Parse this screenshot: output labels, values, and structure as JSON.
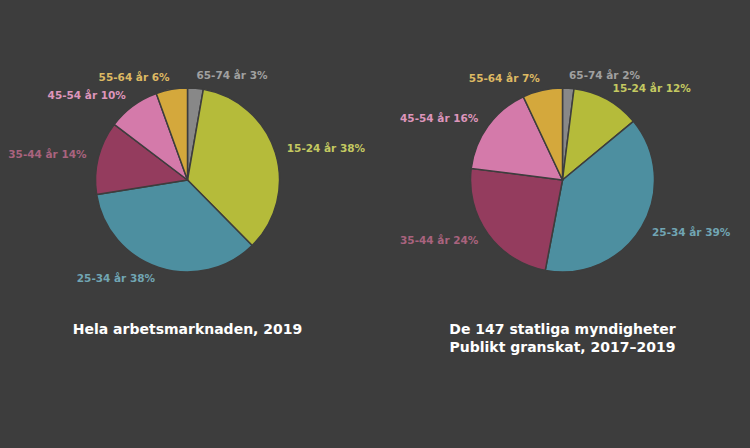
{
  "chart_data": [
    {
      "type": "pie",
      "title": "Hela arbetsmarknaden, 2019",
      "categories": [
        "65-74 år 3%",
        "15-24 år 38%",
        "25-34 år 38%",
        "35-44 år 14%",
        "45-54 år 10%",
        "55-64 år 6%"
      ],
      "values": [
        3,
        38,
        38,
        14,
        10,
        6
      ],
      "colors": [
        "#888888",
        "#b5bb3a",
        "#4d8fa0",
        "#943c5e",
        "#d47aaa",
        "#d4a83c"
      ]
    },
    {
      "type": "pie",
      "title": "De 147 statliga myndigheter\nPublikt granskat, 2017–2019",
      "categories": [
        "65-74 år 2%",
        "15-24 år 12%",
        "25-34 år 39%",
        "35-44 år 24%",
        "45-54 år 16%",
        "55-64 år 7%"
      ],
      "values": [
        2,
        12,
        39,
        24,
        16,
        7
      ],
      "colors": [
        "#888888",
        "#b5bb3a",
        "#4d8fa0",
        "#943c5e",
        "#d47aaa",
        "#d4a83c"
      ]
    }
  ]
}
